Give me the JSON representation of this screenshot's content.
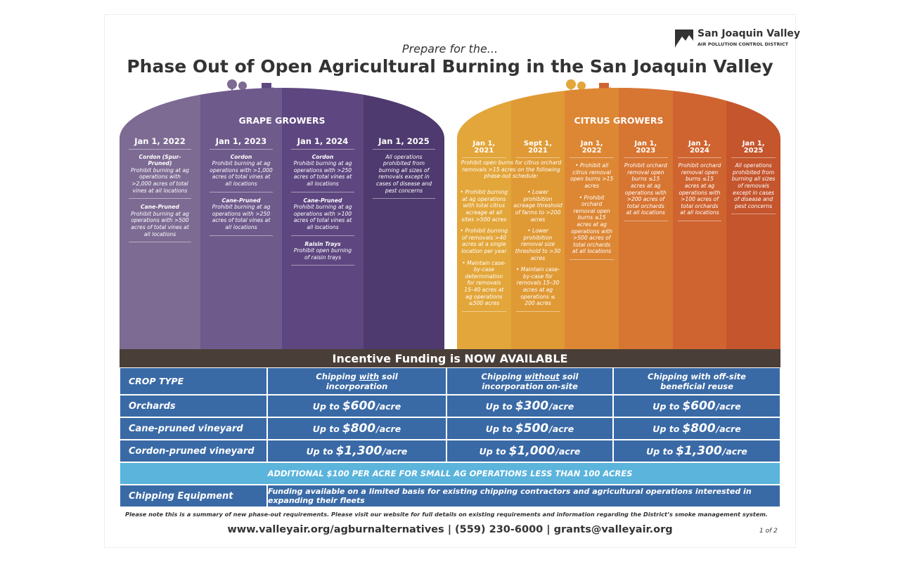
{
  "header": {
    "logo_title": "San Joaquin Valley",
    "logo_subtitle": "AIR POLLUTION CONTROL DISTRICT",
    "pretitle": "Prepare for the...",
    "title": "Phase Out of Open Agricultural Burning in the San Joaquin Valley"
  },
  "grape": {
    "heading": "GRAPE GROWERS",
    "columns": [
      {
        "date": "Jan 1, 2022",
        "blocks": [
          {
            "head": "Cordon (Spur-Pruned)",
            "text": "Prohibit burning at ag operations with >2,000 acres of total vines at all locations"
          },
          {
            "head": "Cane-Pruned",
            "text": "Prohibit burning at ag operations with >500 acres of total vines at all locations"
          }
        ]
      },
      {
        "date": "Jan 1, 2023",
        "blocks": [
          {
            "head": "Cordon",
            "text": "Prohibit burning at ag operations with >1,000 acres of total vines at all locations"
          },
          {
            "head": "Cane-Pruned",
            "text": "Prohibit burning at ag operations with >250 acres of total vines at all locations"
          }
        ]
      },
      {
        "date": "Jan 1, 2024",
        "blocks": [
          {
            "head": "Cordon",
            "text": "Prohibit burning at ag operations with >250 acres of total vines at all locations"
          },
          {
            "head": "Cane-Pruned",
            "text": "Prohibit burning at ag operations with >100 acres of total vines at all locations"
          },
          {
            "head": "Raisin Trays",
            "text": "Prohibit open burning of raisin trays"
          }
        ]
      },
      {
        "date": "Jan 1, 2025",
        "blocks": [
          {
            "text": "All operations prohibited from burning all sizes of removals except in cases of disease and pest concerns"
          }
        ]
      }
    ]
  },
  "citrus": {
    "heading": "CITRUS GROWERS",
    "intro": "Prohibit open burns for citrus orchard removals >15 acres on the following phase-out schedule:",
    "columns": [
      {
        "date": "Jan 1, 2021",
        "items": [
          "• Prohibit burning at ag operations with total citrus acreage at all sites >500 acres",
          "• Prohibit burning of removals >40 acres at a single location per year",
          "• Maintain case-by-case determination for removals 15–40 acres at ag operations ≤500 acres"
        ]
      },
      {
        "date": "Sept 1, 2021",
        "items": [
          "• Lower prohibition acreage threshold of farms to >200 acres",
          "• Lower prohibition removal size threshold to >30 acres",
          "• Maintain case-by-case for removals 15–30 acres at ag operations ≤ 200 acres"
        ]
      },
      {
        "date": "Jan 1, 2022",
        "items": [
          "• Prohibit all citrus removal open burns >15 acres",
          "• Prohibit orchard removal open burns ≤15 acres at ag operations with >500 acres of total orchards at all locations"
        ]
      },
      {
        "date": "Jan 1, 2023",
        "items": [
          "Prohibit orchard removal open burns ≤15 acres at ag operations with >200 acres of total orchards at all locations"
        ]
      },
      {
        "date": "Jan 1, 2024",
        "items": [
          "Prohibit orchard removal open burns ≤15 acres at ag operations with >100 acres of total orchards at all locations"
        ]
      },
      {
        "date": "Jan 1, 2025",
        "items": [
          "All operations prohibited from burning all sizes of removals except in cases of disease and pest concerns"
        ]
      }
    ]
  },
  "funding": {
    "banner": "Incentive Funding is NOW AVAILABLE",
    "header": [
      "CROP TYPE",
      [
        "Chipping ",
        "with",
        " soil incorporation"
      ],
      [
        "Chipping ",
        "without",
        " soil incorporation on-site"
      ],
      [
        "Chipping with off-site beneficial reuse"
      ]
    ],
    "rows": [
      {
        "crop": "Orchards",
        "cells": [
          [
            "Up to",
            "$600",
            "/acre"
          ],
          [
            "Up to",
            "$300",
            "/acre"
          ],
          [
            "Up to",
            "$600",
            "/acre"
          ]
        ]
      },
      {
        "crop": "Cane-pruned vineyard",
        "cells": [
          [
            "Up to",
            "$800",
            "/acre"
          ],
          [
            "Up to",
            "$500",
            "/acre"
          ],
          [
            "Up to",
            "$800",
            "/acre"
          ]
        ]
      },
      {
        "crop": "Cordon-pruned vineyard",
        "cells": [
          [
            "Up to",
            "$1,300",
            "/acre"
          ],
          [
            "Up to",
            "$1,000",
            "/acre"
          ],
          [
            "Up to",
            "$1,300",
            "/acre"
          ]
        ]
      }
    ],
    "additional": "ADDITIONAL $100 PER ACRE FOR SMALL AG OPERATIONS LESS THAN 100 ACRES",
    "equipment": {
      "label": "Chipping Equipment",
      "text": "Funding available on a limited basis for existing chipping contractors and agricultural operations interested in expanding their fleets"
    }
  },
  "footer": {
    "note": "Please note this is a summary of new phase-out requirements. Please visit our website for full details on existing requirements and information regarding the District’s smoke management system.",
    "contact": "www.valleyair.org/agburnalternatives | (559) 230-6000 | grants@valleyair.org",
    "page": "1 of 2"
  }
}
